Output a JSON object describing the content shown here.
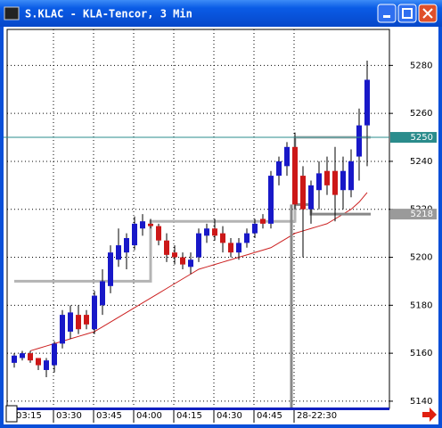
{
  "window": {
    "title": "S.KLAC - KLA-Tencor, 3 Min"
  },
  "chart_data": {
    "type": "candlestick",
    "open": [
      5156,
      5158,
      5160,
      5158,
      5153,
      5155,
      5164,
      5169,
      5176,
      5176,
      5170,
      5180,
      5188,
      5199,
      5202,
      5205,
      5212,
      5214,
      5213,
      5207,
      5202,
      5200,
      5196,
      5200,
      5209,
      5212,
      5210,
      5206,
      5202,
      5206,
      5210,
      5216,
      5214,
      5234,
      5238,
      5246,
      5234,
      5220,
      5228,
      5236,
      5236,
      5228,
      5228,
      5242,
      5255
    ],
    "high": [
      5160,
      5161,
      5161,
      5158,
      5158,
      5165,
      5178,
      5180,
      5180,
      5178,
      5186,
      5195,
      5205,
      5212,
      5210,
      5217,
      5218,
      5216,
      5214,
      5210,
      5205,
      5202,
      5202,
      5212,
      5214,
      5216,
      5213,
      5208,
      5208,
      5212,
      5216,
      5218,
      5236,
      5242,
      5248,
      5252,
      5238,
      5232,
      5240,
      5242,
      5246,
      5242,
      5245,
      5262,
      5282
    ],
    "low": [
      5154,
      5157,
      5156,
      5153,
      5150,
      5152,
      5162,
      5166,
      5168,
      5170,
      5168,
      5176,
      5185,
      5196,
      5195,
      5203,
      5209,
      5212,
      5205,
      5198,
      5197,
      5195,
      5193,
      5198,
      5206,
      5207,
      5202,
      5200,
      5199,
      5204,
      5208,
      5212,
      5212,
      5230,
      5234,
      5220,
      5200,
      5214,
      5220,
      5226,
      5215,
      5220,
      5225,
      5232,
      5238
    ],
    "close": [
      5159,
      5160,
      5157,
      5155,
      5157,
      5164,
      5176,
      5177,
      5170,
      5172,
      5184,
      5190,
      5202,
      5205,
      5208,
      5214,
      5215,
      5213,
      5207,
      5201,
      5200,
      5197,
      5199,
      5210,
      5212,
      5209,
      5206,
      5202,
      5206,
      5210,
      5214,
      5214,
      5234,
      5240,
      5246,
      5222,
      5220,
      5230,
      5235,
      5230,
      5226,
      5236,
      5240,
      5255,
      5274
    ],
    "up_color": "#1818c8",
    "down_color": "#cc1818",
    "overlays": [
      {
        "color": "#cc2020",
        "width": 1,
        "step": false,
        "values": [
          null,
          null,
          5161,
          5162,
          5163,
          5164,
          5165,
          5166,
          5167,
          5168,
          5169,
          5171,
          5173,
          5175,
          5177,
          5179,
          5181,
          5183,
          5185,
          5187,
          5189,
          5191,
          5193,
          5195,
          5196,
          5197,
          5198,
          5199,
          5200,
          5201,
          5202,
          5203,
          5204,
          5206,
          5208,
          5210,
          5211,
          5212,
          5213,
          5214,
          5216,
          5218,
          5220,
          5223,
          5227
        ]
      },
      {
        "color": "#b4b4b4",
        "width": 3,
        "step": true,
        "values": [
          5190,
          5190,
          5190,
          5190,
          5190,
          5190,
          5190,
          5190,
          5190,
          5190,
          5190,
          5190,
          5190,
          5190,
          5190,
          5190,
          5190,
          5215,
          5215,
          5215,
          5215,
          5215,
          5215,
          5215,
          5215,
          5215,
          5215,
          5215,
          5215,
          5215,
          5215,
          5215,
          5215,
          5215,
          5215,
          5250,
          5250,
          5250,
          5250,
          5250,
          5250,
          5250,
          5250,
          5250,
          5250
        ]
      },
      {
        "color": "#888888",
        "width": 3,
        "step": true,
        "values": [
          null,
          null,
          null,
          null,
          null,
          null,
          null,
          null,
          null,
          null,
          null,
          null,
          null,
          null,
          null,
          null,
          null,
          null,
          null,
          null,
          null,
          null,
          null,
          null,
          null,
          null,
          null,
          null,
          null,
          null,
          null,
          null,
          null,
          null,
          null,
          5222,
          5222,
          5218,
          5218,
          5218,
          5218,
          5218,
          5218,
          5218,
          5218
        ]
      }
    ],
    "xticks": [
      {
        "value": 0,
        "label": "03:15"
      },
      {
        "value": 5,
        "label": "03:30"
      },
      {
        "value": 10,
        "label": "03:45"
      },
      {
        "value": 15,
        "label": "04:00"
      },
      {
        "value": 20,
        "label": "04:15"
      },
      {
        "value": 25,
        "label": "04:30"
      },
      {
        "value": 30,
        "label": "04:45"
      },
      {
        "value": 35,
        "label": "28-22:30"
      }
    ],
    "ylim": [
      5137,
      5295
    ],
    "yticks": [
      5140,
      5160,
      5180,
      5200,
      5220,
      5240,
      5260,
      5280
    ],
    "price_markers": [
      {
        "value": 5250,
        "color": "#2a8c8c"
      },
      {
        "value": 5218,
        "color": "#9a9a9a"
      }
    ],
    "grid": true
  }
}
